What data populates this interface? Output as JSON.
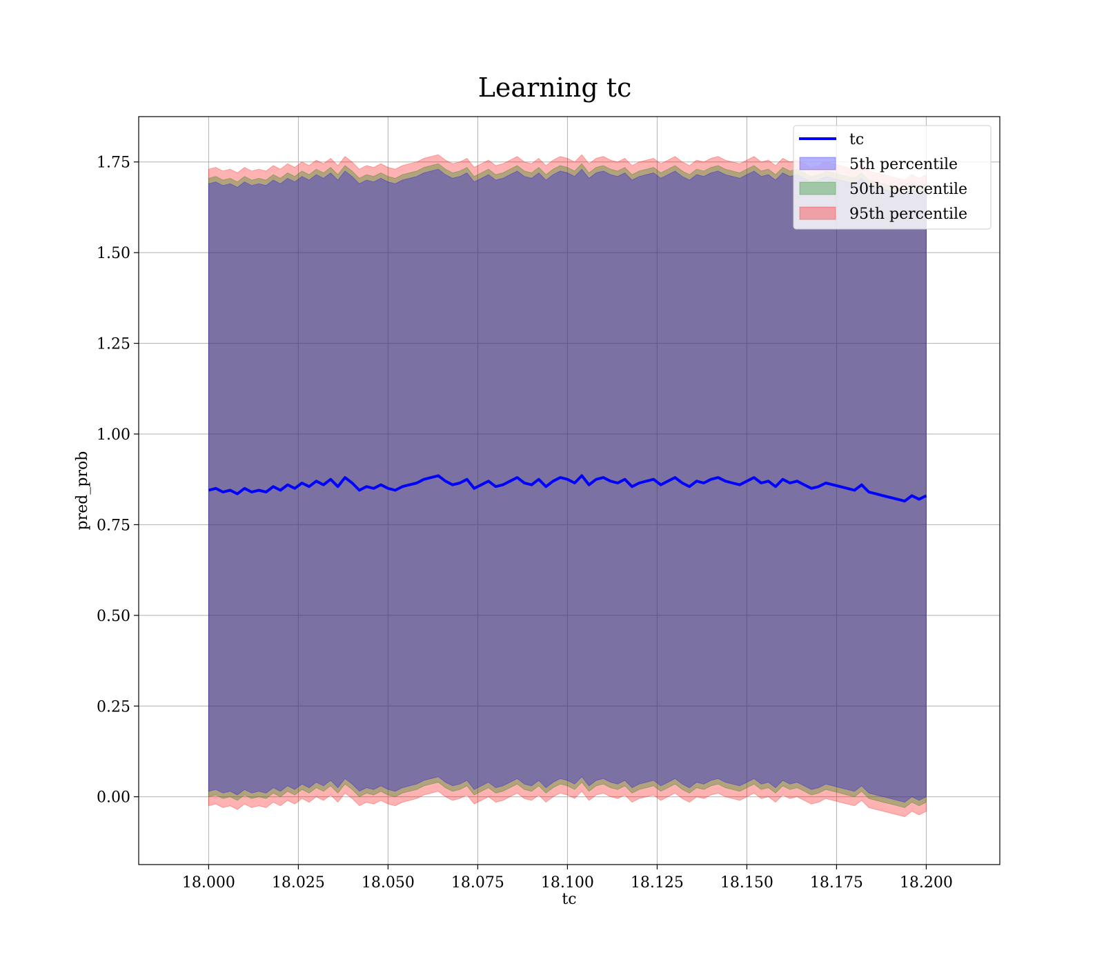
{
  "chart_data": {
    "type": "area",
    "title": "Learning tc",
    "xlabel": "tc",
    "ylabel": "pred_prob",
    "xlim": [
      17.9805,
      18.2205
    ],
    "ylim": [
      -0.187,
      1.875
    ],
    "grid": true,
    "legend_position": "top-right",
    "x_ticks": [
      "18.000",
      "18.025",
      "18.050",
      "18.075",
      "18.100",
      "18.125",
      "18.150",
      "18.175",
      "18.200"
    ],
    "x_tick_values": [
      18.0,
      18.025,
      18.05,
      18.075,
      18.1,
      18.125,
      18.15,
      18.175,
      18.2
    ],
    "y_ticks": [
      "0.00",
      "0.25",
      "0.50",
      "0.75",
      "1.00",
      "1.25",
      "1.50",
      "1.75"
    ],
    "y_tick_values": [
      0.0,
      0.25,
      0.5,
      0.75,
      1.0,
      1.25,
      1.5,
      1.75
    ],
    "x": [
      18.0,
      18.002,
      18.004,
      18.006,
      18.008,
      18.01,
      18.012,
      18.014,
      18.016,
      18.018,
      18.02,
      18.022,
      18.024,
      18.026,
      18.028,
      18.03,
      18.032,
      18.034,
      18.036,
      18.038,
      18.04,
      18.042,
      18.044,
      18.046,
      18.048,
      18.05,
      18.052,
      18.054,
      18.056,
      18.058,
      18.06,
      18.062,
      18.064,
      18.066,
      18.068,
      18.07,
      18.072,
      18.074,
      18.076,
      18.078,
      18.08,
      18.082,
      18.084,
      18.086,
      18.088,
      18.09,
      18.092,
      18.094,
      18.096,
      18.098,
      18.1,
      18.102,
      18.104,
      18.106,
      18.108,
      18.11,
      18.112,
      18.114,
      18.116,
      18.118,
      18.12,
      18.122,
      18.124,
      18.126,
      18.128,
      18.13,
      18.132,
      18.134,
      18.136,
      18.138,
      18.14,
      18.142,
      18.144,
      18.146,
      18.148,
      18.15,
      18.152,
      18.154,
      18.156,
      18.158,
      18.16,
      18.162,
      18.164,
      18.166,
      18.168,
      18.17,
      18.172,
      18.174,
      18.176,
      18.178,
      18.18,
      18.182,
      18.184,
      18.186,
      18.188,
      18.19,
      18.192,
      18.194,
      18.196,
      18.198,
      18.2
    ],
    "series": [
      {
        "name": "tc",
        "kind": "line",
        "color": "#0000ff",
        "values": [
          0.845,
          0.85,
          0.84,
          0.845,
          0.835,
          0.85,
          0.84,
          0.845,
          0.84,
          0.855,
          0.845,
          0.86,
          0.85,
          0.865,
          0.855,
          0.87,
          0.86,
          0.875,
          0.855,
          0.88,
          0.865,
          0.845,
          0.855,
          0.85,
          0.86,
          0.85,
          0.845,
          0.855,
          0.86,
          0.865,
          0.875,
          0.88,
          0.885,
          0.87,
          0.86,
          0.865,
          0.875,
          0.85,
          0.86,
          0.87,
          0.855,
          0.86,
          0.87,
          0.88,
          0.865,
          0.86,
          0.875,
          0.855,
          0.87,
          0.88,
          0.875,
          0.865,
          0.885,
          0.86,
          0.875,
          0.88,
          0.87,
          0.865,
          0.875,
          0.855,
          0.865,
          0.87,
          0.875,
          0.86,
          0.87,
          0.88,
          0.865,
          0.855,
          0.87,
          0.865,
          0.875,
          0.88,
          0.87,
          0.865,
          0.86,
          0.87,
          0.88,
          0.865,
          0.87,
          0.855,
          0.875,
          0.865,
          0.87,
          0.86,
          0.85,
          0.855,
          0.865,
          0.86,
          0.855,
          0.85,
          0.845,
          0.86,
          0.84,
          0.835,
          0.83,
          0.825,
          0.82,
          0.815,
          0.83,
          0.82,
          0.83
        ]
      },
      {
        "name": "5th percentile",
        "kind": "band",
        "color": "#0000ff",
        "opacity": 0.3,
        "lower_offset": 0.015,
        "upper_offset": -0.015
      },
      {
        "name": "50th percentile",
        "kind": "band",
        "color": "#008000",
        "opacity": 0.3,
        "lower_offset": 0.0,
        "upper_offset": 0.0
      },
      {
        "name": "95th percentile",
        "kind": "band",
        "color": "#ff0000",
        "opacity": 0.3,
        "lower_offset": -0.025,
        "upper_offset": 0.025
      }
    ],
    "band_center_lower_shift": -0.845,
    "band_center_upper_shift": 0.86
  }
}
